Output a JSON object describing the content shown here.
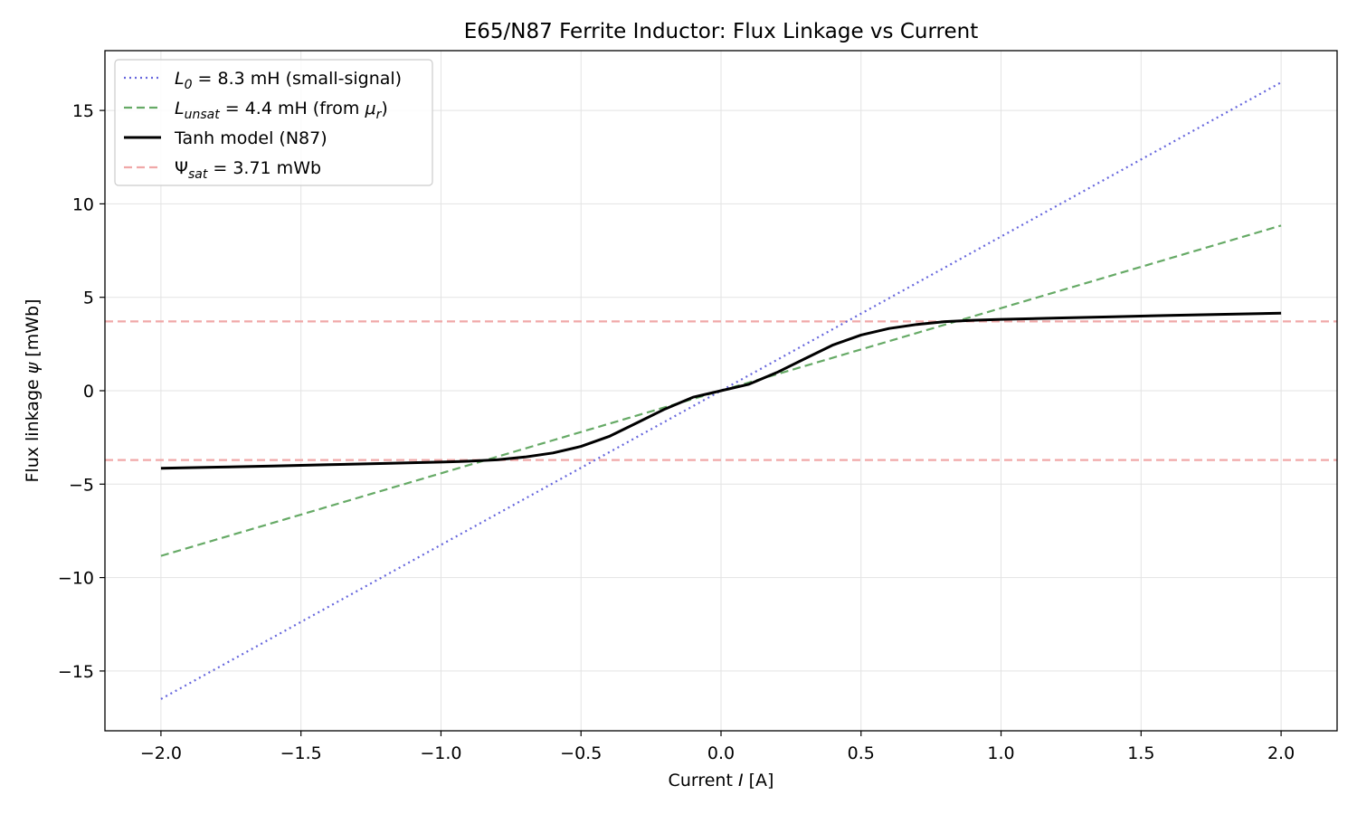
{
  "chart_data": {
    "type": "line",
    "title": "E65/N87 Ferrite Inductor: Flux Linkage vs Current",
    "xlabel": {
      "prefix": "Current ",
      "var": "I",
      "suffix": " [A]"
    },
    "ylabel": {
      "prefix": "Flux linkage ",
      "var": "ψ",
      "suffix": " [mWb]"
    },
    "xlim": [
      -2.2,
      2.2
    ],
    "ylim": [
      -18.2,
      18.2
    ],
    "xticks": [
      -2.0,
      -1.5,
      -1.0,
      -0.5,
      0.0,
      0.5,
      1.0,
      1.5,
      2.0
    ],
    "xtick_labels": [
      "−2.0",
      "−1.5",
      "−1.0",
      "−0.5",
      "0.0",
      "0.5",
      "1.0",
      "1.5",
      "2.0"
    ],
    "yticks": [
      -15,
      -10,
      -5,
      0,
      5,
      10,
      15
    ],
    "ytick_labels": [
      "−15",
      "−10",
      "−5",
      "0",
      "5",
      "10",
      "15"
    ],
    "grid": true,
    "legend_position": "top-left",
    "series": [
      {
        "name": "L_0 = 8.3 mH (small-signal)",
        "legend": {
          "sym": "L",
          "sub": "0",
          "rest": " = 8.3 mH (small-signal)"
        },
        "kind": "linear",
        "slope": 8.25,
        "x_range": [
          -2.0,
          2.0
        ],
        "color": "#6666dd",
        "style": "dotted"
      },
      {
        "name": "L_unsat = 4.4 mH (from μ_r)",
        "legend": {
          "sym": "L",
          "sub": "unsat",
          "rest": " = 4.4 mH (from ",
          "sym2": "μ",
          "sub2": "r",
          "rest2": ")"
        },
        "kind": "linear",
        "slope": 4.42,
        "x_range": [
          -2.0,
          2.0
        ],
        "color": "#66aa66",
        "style": "dashed"
      },
      {
        "name": "Tanh model (N87)",
        "legend": {
          "sym": "",
          "sub": "",
          "rest": "Tanh model (N87)"
        },
        "kind": "curve",
        "x": [
          -2.0,
          -1.8,
          -1.6,
          -1.4,
          -1.2,
          -1.0,
          -0.9,
          -0.8,
          -0.7,
          -0.6,
          -0.5,
          -0.4,
          -0.3,
          -0.2,
          -0.1,
          0.0,
          0.1,
          0.2,
          0.3,
          0.4,
          0.5,
          0.6,
          0.7,
          0.8,
          0.9,
          1.0,
          1.2,
          1.4,
          1.6,
          1.8,
          2.0
        ],
        "y": [
          -4.15,
          -4.09,
          -4.03,
          -3.96,
          -3.89,
          -3.82,
          -3.77,
          -3.7,
          -3.55,
          -3.33,
          -2.98,
          -2.45,
          -1.72,
          -0.98,
          -0.35,
          0.0,
          0.35,
          0.98,
          1.72,
          2.45,
          2.98,
          3.33,
          3.55,
          3.7,
          3.77,
          3.82,
          3.89,
          3.96,
          4.03,
          4.09,
          4.15
        ],
        "color": "#000000",
        "style": "solid"
      },
      {
        "name": "Ψ_sat = 3.71 mWb",
        "legend": {
          "sym": "Ψ",
          "sub": "sat",
          "rest": " = 3.71 mWb"
        },
        "kind": "hlines",
        "values": [
          3.71,
          -3.71
        ],
        "color": "#f0a8a8",
        "style": "dashed"
      }
    ]
  }
}
